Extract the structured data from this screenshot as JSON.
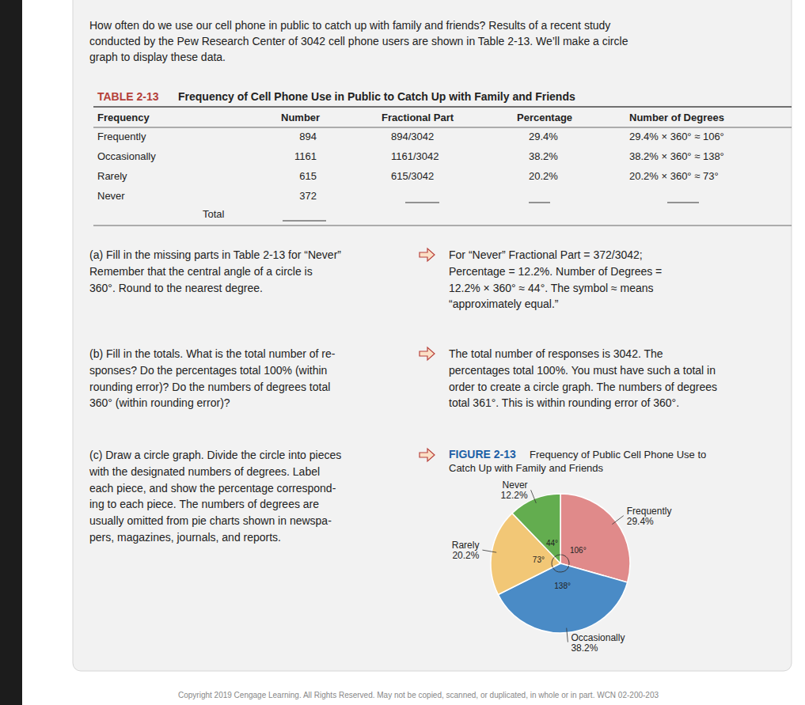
{
  "intro": [
    "How often do we use our cell phone in public to catch up with family and friends? Results of a recent study",
    "conducted by the Pew Research Center of 3042 cell phone users are shown in Table 2-13. We’ll make a circle",
    "graph to display these data."
  ],
  "table": {
    "label": "TABLE 2-13",
    "title": "Frequency of Cell Phone Use in Public to Catch Up with Family and Friends",
    "header": [
      "Frequency",
      "Number",
      "Fractional Part",
      "Percentage",
      "Number of Degrees"
    ],
    "rows": [
      [
        "Frequently",
        894,
        "894/3042",
        "29.4%",
        "29.4% × 360° ≈ 106°"
      ],
      [
        "Occasionally",
        1161,
        "1161/3042",
        "38.2%",
        "38.2% × 360° ≈ 138°"
      ],
      [
        "Rarely",
        615,
        "615/3042",
        "20.2%",
        "20.2% × 360° ≈ 73°"
      ],
      [
        "Never",
        372,
        null,
        null,
        null
      ]
    ],
    "total_row": [
      "Total",
      null
    ]
  },
  "parts": [
    {
      "question": [
        "(a)  Fill in the missing parts in Table 2-13 for “Never”",
        "Remember that the central angle of a circle is",
        "360°. Round to the nearest degree."
      ],
      "answer": [
        "For “Never” Fractional Part = 372/3042;",
        "Percentage = 12.2%. Number of Degrees =",
        "12.2% × 360° ≈ 44°. The symbol ≈ means",
        "“approximately equal.”"
      ]
    },
    {
      "question": [
        "(b)  Fill in the totals. What is the total number of re-",
        "sponses? Do the percentages total 100% (within",
        "rounding error)? Do the numbers of degrees total",
        "360° (within rounding error)?"
      ],
      "answer": [
        "The total number of responses is 3042. The",
        "percentages total 100%. You must have such a total in",
        "order to create a circle graph. The numbers of degrees",
        "total 361°. This is within rounding error of 360°."
      ]
    },
    {
      "question": [
        "(c)  Draw a circle graph. Divide the circle into pieces",
        "with the designated numbers of degrees. Label",
        "each piece, and show the percentage correspond-",
        "ing to each piece. The numbers of degrees are",
        "usually omitted from pie charts shown in newspa-",
        "pers, magazines, journals, and reports."
      ]
    }
  ],
  "figure": {
    "label": "FIGURE 2-13",
    "caption": [
      "Frequency of Public Cell Phone Use to",
      "Catch Up with Family and Friends"
    ]
  },
  "chart_data": {
    "type": "pie",
    "categories": [
      "Frequently",
      "Occasionally",
      "Rarely",
      "Never"
    ],
    "values": [
      29.4,
      38.2,
      20.2,
      12.2
    ],
    "value_labels": [
      "29.4%",
      "38.2%",
      "20.2%",
      "12.2%"
    ],
    "degrees": [
      106,
      138,
      73,
      44
    ],
    "degree_labels": [
      "106°",
      "138°",
      "73°",
      "44°"
    ],
    "colors": [
      "#e08a8a",
      "#4a8bc6",
      "#f2c776",
      "#63ad4f"
    ],
    "data_labels": true
  },
  "copyright": "Copyright 2019 Cengage Learning. All Rights Reserved. May not be copied, scanned, or duplicated, in whole or in part.  WCN 02-200-203"
}
